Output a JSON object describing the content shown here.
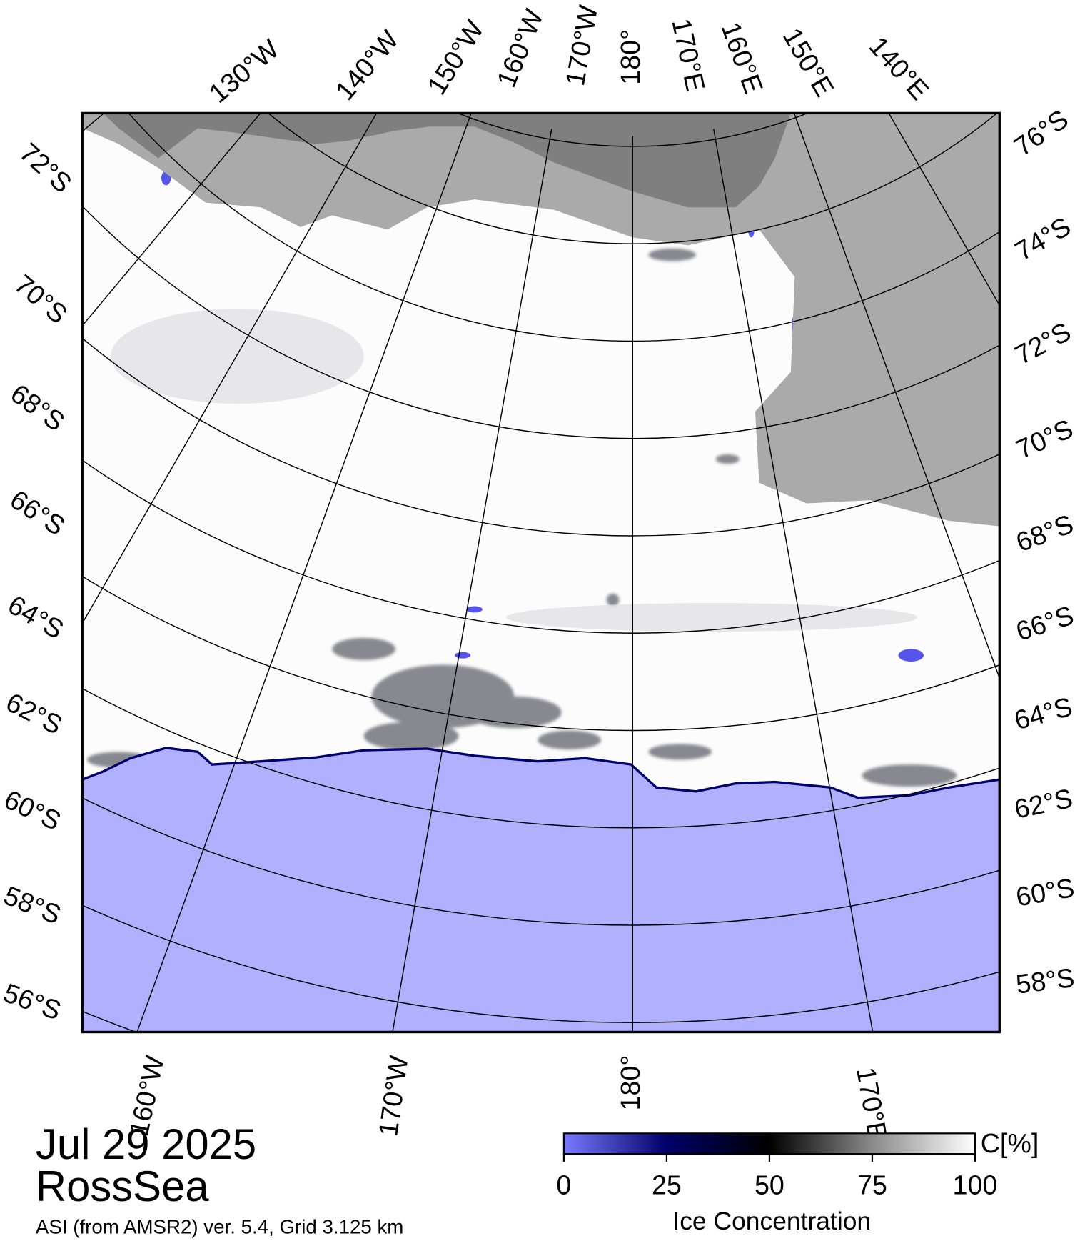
{
  "map": {
    "date": "Jul 29 2025",
    "region": "RossSea",
    "subtitle": "ASI (from AMSR2) ver. 5.4,  Grid 3.125 km",
    "top_lon_labels": [
      "130°W",
      "140°W",
      "150°W",
      "160°W",
      "170°W",
      "180°",
      "170°E",
      "160°E",
      "150°E",
      "140°E"
    ],
    "left_lat_labels": [
      "72°S",
      "70°S",
      "68°S",
      "66°S",
      "64°S",
      "62°S",
      "60°S",
      "58°S",
      "56°S"
    ],
    "right_lat_labels": [
      "76°S",
      "74°S",
      "72°S",
      "70°S",
      "68°S",
      "66°S",
      "64°S",
      "62°S",
      "60°S",
      "58°S"
    ],
    "bottom_lon_labels": [
      "160°W",
      "170°W",
      "180°",
      "170°E"
    ]
  },
  "colorbar": {
    "range": [
      0,
      100
    ],
    "ticks": [
      0,
      25,
      50,
      75,
      100
    ],
    "unit": "C[%]",
    "title": "Ice Concentration"
  }
}
